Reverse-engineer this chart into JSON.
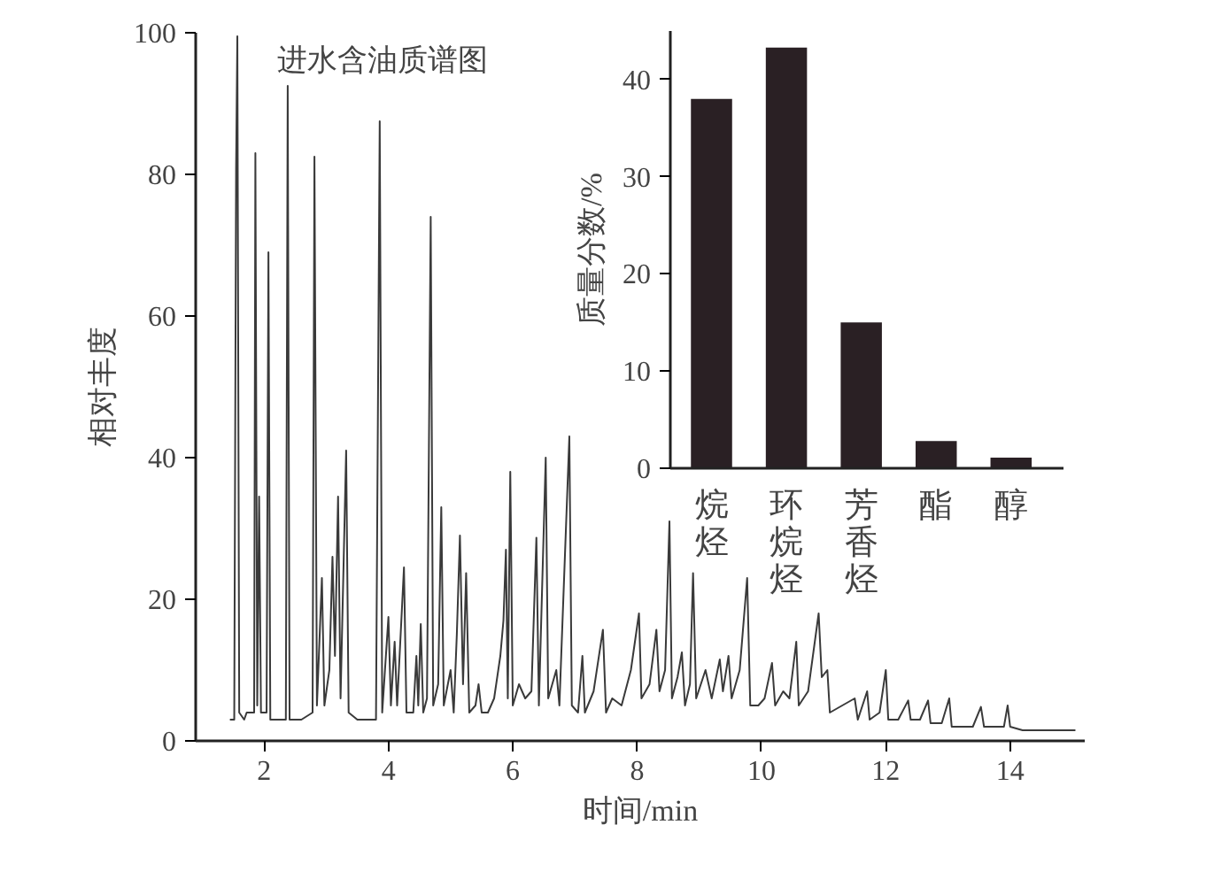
{
  "chart_data": [
    {
      "type": "line",
      "title": "进水含油质谱图",
      "xlabel": "时间/min",
      "ylabel": "相对丰度",
      "color": "#3a3a3a",
      "xlim": [
        0.9,
        15.2
      ],
      "ylim": [
        0,
        100
      ],
      "xticks": [
        2,
        4,
        6,
        8,
        10,
        12,
        14
      ],
      "yticks": [
        0,
        20,
        40,
        60,
        80,
        100
      ],
      "x": [
        1.45,
        1.52,
        1.55,
        1.57,
        1.6,
        1.68,
        1.72,
        1.84,
        1.86,
        1.89,
        1.92,
        1.95,
        2.04,
        2.07,
        2.1,
        2.2,
        2.35,
        2.38,
        2.41,
        2.6,
        2.78,
        2.81,
        2.85,
        2.93,
        2.97,
        3.05,
        3.1,
        3.14,
        3.19,
        3.23,
        3.32,
        3.36,
        3.5,
        3.8,
        3.86,
        3.9,
        4.0,
        4.04,
        4.1,
        4.14,
        4.25,
        4.29,
        4.4,
        4.45,
        4.48,
        4.52,
        4.56,
        4.62,
        4.68,
        4.72,
        4.8,
        4.85,
        4.89,
        5.0,
        5.05,
        5.1,
        5.15,
        5.2,
        5.25,
        5.3,
        5.4,
        5.45,
        5.5,
        5.6,
        5.7,
        5.8,
        5.85,
        5.89,
        5.92,
        5.96,
        6.0,
        6.1,
        6.2,
        6.3,
        6.38,
        6.42,
        6.53,
        6.57,
        6.7,
        6.75,
        6.91,
        6.95,
        7.05,
        7.12,
        7.16,
        7.3,
        7.45,
        7.5,
        7.6,
        7.75,
        7.9,
        8.03,
        8.07,
        8.2,
        8.31,
        8.36,
        8.45,
        8.52,
        8.56,
        8.65,
        8.72,
        8.77,
        8.85,
        8.9,
        8.95,
        9.1,
        9.2,
        9.33,
        9.38,
        9.47,
        9.52,
        9.65,
        9.77,
        9.82,
        9.95,
        10.05,
        10.17,
        10.22,
        10.35,
        10.45,
        10.56,
        10.6,
        10.75,
        10.92,
        10.97,
        11.06,
        11.1,
        11.3,
        11.5,
        11.55,
        11.7,
        11.74,
        11.9,
        12.0,
        12.04,
        12.2,
        12.36,
        12.4,
        12.55,
        12.68,
        12.72,
        12.9,
        13.02,
        13.06,
        13.4,
        13.53,
        13.58,
        13.9,
        13.96,
        14.0,
        14.2,
        14.6,
        15.05
      ],
      "values": [
        3,
        3,
        81,
        99.5,
        4,
        3,
        4,
        4,
        83,
        5,
        34.5,
        4,
        4,
        69,
        3,
        3,
        3,
        92.5,
        3,
        3,
        4,
        82.5,
        5,
        23,
        5,
        10,
        26,
        12,
        34.5,
        6,
        41,
        4,
        3,
        3,
        87.5,
        4,
        17.5,
        5,
        14,
        5,
        24.5,
        4,
        4,
        12,
        5,
        16.5,
        4,
        6,
        74,
        5,
        8,
        33,
        5,
        10,
        4,
        15,
        29,
        8,
        23.7,
        4,
        5,
        8,
        4,
        4,
        6,
        12,
        17,
        27,
        6,
        38,
        5,
        8,
        6,
        7,
        28.7,
        5,
        40,
        6,
        10,
        5,
        43,
        5,
        4,
        12,
        4,
        7,
        15.7,
        4,
        6,
        5,
        10,
        18,
        6,
        8,
        15.7,
        7,
        10,
        31,
        6,
        9,
        12.5,
        5,
        8,
        23.7,
        6,
        10,
        6,
        11.5,
        7,
        12,
        6,
        10,
        23,
        5,
        5,
        6,
        11,
        5,
        7,
        6,
        14,
        5,
        7,
        18,
        9,
        10,
        4,
        5,
        6,
        3,
        7,
        3,
        4,
        10,
        3,
        3,
        5.7,
        3,
        3,
        5.7,
        2.5,
        2.5,
        6,
        2,
        2,
        4.8,
        2,
        2,
        5,
        2,
        1.5,
        1.5,
        1.5
      ]
    },
    {
      "type": "bar",
      "ylabel": "质量分数/%",
      "categories": [
        "烷烃",
        "环烷烃",
        "芳香烃",
        "酯",
        "醇"
      ],
      "values": [
        38,
        43.3,
        15,
        2.8,
        1.1
      ],
      "color": "#2a2024",
      "ylim": [
        0,
        45
      ],
      "yticks": [
        0,
        10,
        20,
        30,
        40
      ]
    }
  ]
}
